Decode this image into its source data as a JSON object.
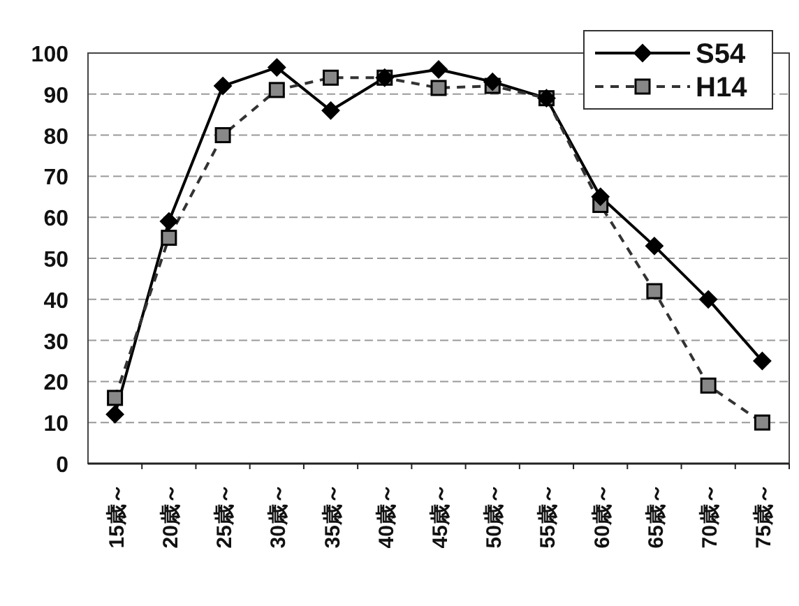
{
  "chart_data": {
    "type": "line",
    "categories": [
      "15歳～",
      "20歳～",
      "25歳～",
      "30歳～",
      "35歳～",
      "40歳～",
      "45歳～",
      "50歳～",
      "55歳～",
      "60歳～",
      "65歳～",
      "70歳～",
      "75歳～"
    ],
    "series": [
      {
        "name": "S54",
        "color": "#000000",
        "marker": "diamond",
        "line_style": "solid",
        "values": [
          12,
          59,
          92,
          96.5,
          86,
          94,
          96,
          93,
          89,
          65,
          53,
          40,
          25
        ]
      },
      {
        "name": "H14",
        "color": "#333333",
        "marker": "square",
        "line_style": "dashed",
        "values": [
          16,
          55,
          80,
          91,
          94,
          94,
          91.5,
          92,
          89,
          63,
          42,
          19,
          10
        ]
      }
    ],
    "ylim": [
      0,
      100
    ],
    "yticks": [
      0,
      10,
      20,
      30,
      40,
      50,
      60,
      70,
      80,
      90,
      100
    ],
    "grid": "y",
    "legend": "top right"
  }
}
